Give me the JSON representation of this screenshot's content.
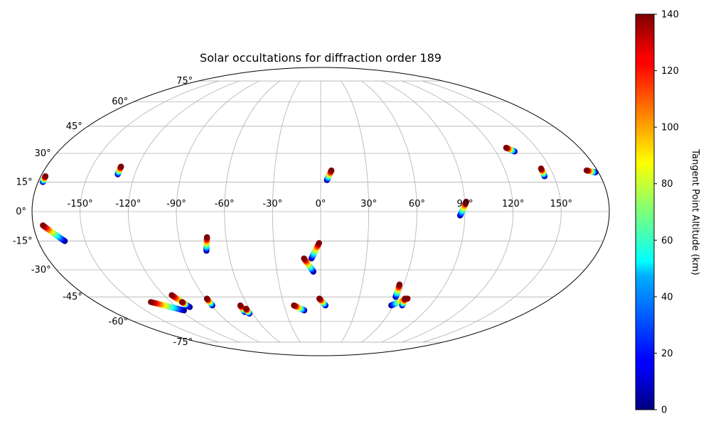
{
  "chart_data": {
    "type": "scatter",
    "projection": "mollweide",
    "title": "Solar occultations for diffraction order 189",
    "grid": true,
    "lon_ticks": [
      -150,
      -120,
      -90,
      -60,
      -30,
      0,
      30,
      60,
      90,
      120,
      150
    ],
    "lon_tick_labels": [
      "-150°",
      "-120°",
      "-90°",
      "-60°",
      "-30°",
      "0°",
      "30°",
      "60°",
      "90°",
      "120°",
      "150°"
    ],
    "lat_ticks": [
      -75,
      -60,
      -45,
      -30,
      -15,
      0,
      15,
      30,
      45,
      60,
      75
    ],
    "lat_tick_labels": [
      "-75°",
      "-60°",
      "-45°",
      "-30°",
      "-15°",
      "0°",
      "15°",
      "30°",
      "45°",
      "60°",
      "75°"
    ],
    "colorbar": {
      "label": "Tangent Point Altitude (km)",
      "colormap": "jet",
      "range": [
        0,
        140
      ],
      "ticks": [
        0,
        20,
        40,
        60,
        80,
        100,
        120,
        140
      ]
    },
    "tracks": [
      {
        "start": [
          -177,
          15
        ],
        "end": [
          -177,
          18
        ],
        "alt_start": 0,
        "alt_end": 140
      },
      {
        "start": [
          -131,
          19
        ],
        "end": [
          -131,
          23
        ],
        "alt_start": 0,
        "alt_end": 140
      },
      {
        "start": [
          4,
          16
        ],
        "end": [
          7,
          21
        ],
        "alt_start": 0,
        "alt_end": 140
      },
      {
        "start": [
          133,
          31
        ],
        "end": [
          129,
          33
        ],
        "alt_start": 0,
        "alt_end": 140
      },
      {
        "start": [
          144,
          18
        ],
        "end": [
          144,
          22
        ],
        "alt_start": 0,
        "alt_end": 140
      },
      {
        "start": [
          178,
          20
        ],
        "end": [
          173,
          21
        ],
        "alt_start": 0,
        "alt_end": 140
      },
      {
        "start": [
          87,
          -2
        ],
        "end": [
          91,
          5
        ],
        "alt_start": 0,
        "alt_end": 140
      },
      {
        "start": [
          -163,
          -15
        ],
        "end": [
          -174,
          -7
        ],
        "alt_start": 0,
        "alt_end": 140
      },
      {
        "start": [
          -74,
          -20
        ],
        "end": [
          -72,
          -13
        ],
        "alt_start": 0,
        "alt_end": 140
      },
      {
        "start": [
          -6,
          -24
        ],
        "end": [
          -1,
          -16
        ],
        "alt_start": 0,
        "alt_end": 140
      },
      {
        "start": [
          -5,
          -31
        ],
        "end": [
          -11,
          -24
        ],
        "alt_start": 0,
        "alt_end": 140
      },
      {
        "start": [
          4,
          -50
        ],
        "end": [
          -1,
          -46
        ],
        "alt_start": 0,
        "alt_end": 140
      },
      {
        "start": [
          58,
          -45
        ],
        "end": [
          57,
          -38
        ],
        "alt_start": 0,
        "alt_end": 140
      },
      {
        "start": [
          58,
          -50
        ],
        "end": [
          68,
          -46
        ],
        "alt_start": 0,
        "alt_end": 140
      },
      {
        "start": [
          67,
          -50
        ],
        "end": [
          66,
          -46
        ],
        "alt_start": 0,
        "alt_end": 140
      },
      {
        "start": [
          -117,
          -53
        ],
        "end": [
          -136,
          -48
        ],
        "alt_start": 0,
        "alt_end": 140
      },
      {
        "start": [
          -109,
          -51
        ],
        "end": [
          -114,
          -44
        ],
        "alt_start": 0,
        "alt_end": 140
      },
      {
        "start": [
          -110,
          -50
        ],
        "end": [
          -111,
          -48
        ],
        "alt_start": 0,
        "alt_end": 140
      },
      {
        "start": [
          -89,
          -50
        ],
        "end": [
          -89,
          -46
        ],
        "alt_start": 0,
        "alt_end": 140
      },
      {
        "start": [
          -66,
          -54
        ],
        "end": [
          -66,
          -50
        ],
        "alt_start": 0,
        "alt_end": 140
      },
      {
        "start": [
          -63,
          -55
        ],
        "end": [
          -63,
          -52
        ],
        "alt_start": 0,
        "alt_end": 140
      },
      {
        "start": [
          -14,
          -53
        ],
        "end": [
          -22,
          -50
        ],
        "alt_start": 0,
        "alt_end": 140
      }
    ]
  }
}
